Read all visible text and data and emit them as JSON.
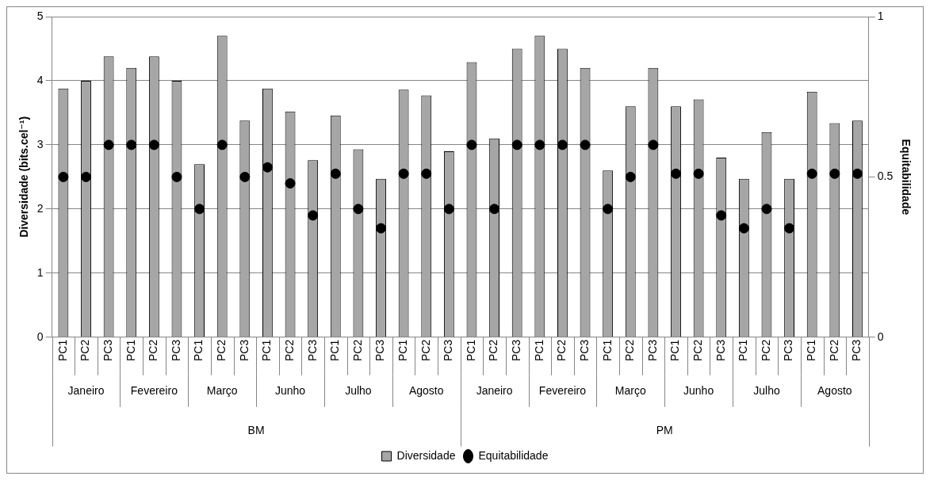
{
  "chart_data": {
    "type": "bar",
    "ylabel": "Diversidade (bits.cel⁻¹)",
    "y2label": "Equitabilidade",
    "categories": [
      "PC1",
      "PC2",
      "PC3",
      "PC1",
      "PC2",
      "PC3",
      "PC1",
      "PC2",
      "PC3",
      "PC1",
      "PC2",
      "PC3",
      "PC1",
      "PC2",
      "PC3",
      "PC1",
      "PC2",
      "PC3",
      "PC1",
      "PC2",
      "PC3",
      "PC1",
      "PC2",
      "PC3",
      "PC1",
      "PC2",
      "PC3",
      "PC1",
      "PC2",
      "PC3",
      "PC1",
      "PC2",
      "PC3",
      "PC1",
      "PC2",
      "PC3"
    ],
    "series": [
      {
        "name": "Diversidade",
        "color": "#a6a6a6",
        "values": [
          3.88,
          4.0,
          4.38,
          4.2,
          4.38,
          4.0,
          2.7,
          4.7,
          3.38,
          3.88,
          3.52,
          2.76,
          3.46,
          2.93,
          2.47,
          3.86,
          3.77,
          2.9,
          4.29,
          3.1,
          4.5,
          4.7,
          4.5,
          4.2,
          2.6,
          3.6,
          4.2,
          3.6,
          3.71,
          2.8,
          2.47,
          3.2,
          2.47,
          3.83,
          3.34,
          3.38
        ]
      },
      {
        "name": "Equitabilidade",
        "type": "scatter",
        "axis": "y2",
        "color": "#000000",
        "values": [
          0.5,
          0.5,
          0.6,
          0.6,
          0.6,
          0.5,
          0.4,
          0.6,
          0.5,
          0.53,
          0.48,
          0.38,
          0.51,
          0.4,
          0.34,
          0.51,
          0.51,
          0.4,
          0.6,
          0.4,
          0.6,
          0.6,
          0.6,
          0.6,
          0.4,
          0.5,
          0.6,
          0.51,
          0.51,
          0.38,
          0.34,
          0.4,
          0.34,
          0.51,
          0.51,
          0.51
        ]
      }
    ],
    "annotations": [
      "Janeiro",
      "Fevereiro",
      "Março",
      "Junho",
      "Julho",
      "Agosto",
      "Janeiro",
      "Fevereiro",
      "Março",
      "Junho",
      "Julho",
      "Agosto",
      "BM",
      "PM"
    ],
    "ylim": [
      0,
      5
    ],
    "yticks": [
      0,
      1,
      2,
      3,
      4,
      5
    ],
    "y2lim": [
      0,
      1
    ],
    "y2ticks": [
      0,
      0.5,
      1
    ],
    "grid": "y",
    "legend": "bottom",
    "marker": "circle"
  }
}
